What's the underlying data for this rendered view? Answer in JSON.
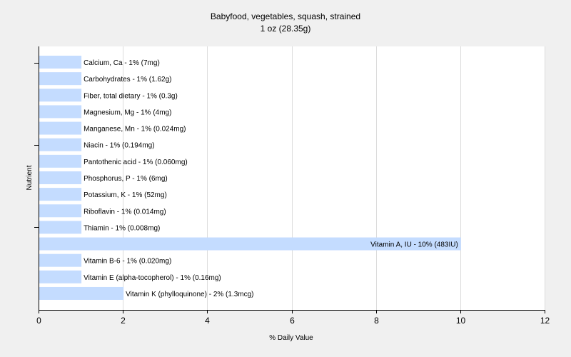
{
  "chart_data": {
    "type": "bar",
    "orientation": "horizontal",
    "title": "Babyfood, vegetables, squash, strained",
    "subtitle": "1 oz (28.35g)",
    "xlabel": "% Daily Value",
    "ylabel": "Nutrient",
    "xlim": [
      0,
      12
    ],
    "xticks": [
      "0",
      "2",
      "4",
      "6",
      "8",
      "10",
      "12"
    ],
    "grid": true,
    "bar_color": "#c4dcff",
    "categories": [
      "Calcium, Ca - 1% (7mg)",
      "Carbohydrates - 1% (1.62g)",
      "Fiber, total dietary - 1% (0.3g)",
      "Magnesium, Mg - 1% (4mg)",
      "Manganese, Mn - 1% (0.024mg)",
      "Niacin - 1% (0.194mg)",
      "Pantothenic acid - 1% (0.060mg)",
      "Phosphorus, P - 1% (6mg)",
      "Potassium, K - 1% (52mg)",
      "Riboflavin - 1% (0.014mg)",
      "Thiamin - 1% (0.008mg)",
      "Vitamin A, IU - 10% (483IU)",
      "Vitamin B-6 - 1% (0.020mg)",
      "Vitamin E (alpha-tocopherol) - 1% (0.16mg)",
      "Vitamin K (phylloquinone) - 2% (1.3mcg)"
    ],
    "values": [
      1,
      1,
      1,
      1,
      1,
      1,
      1,
      1,
      1,
      1,
      1,
      10,
      1,
      1,
      2
    ]
  }
}
